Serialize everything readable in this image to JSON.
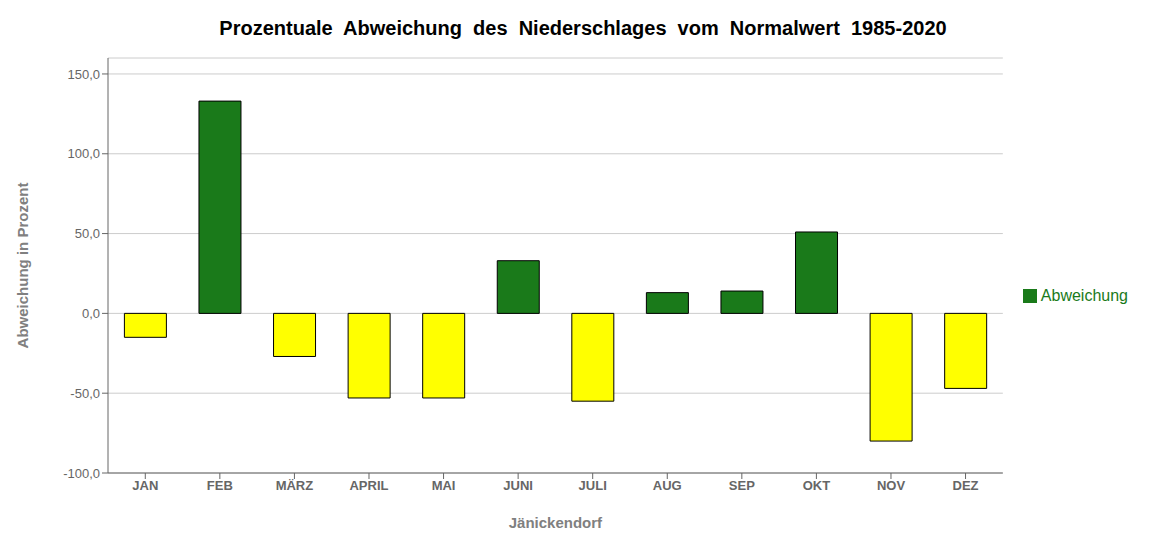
{
  "chart_data": {
    "type": "bar",
    "title": "Prozentuale  Abweichung  des  Niederschlages  vom  Normalwert  1985-2020",
    "xlabel": "Jänickendorf",
    "ylabel": "Abweichung in Prozent",
    "categories": [
      "JAN",
      "FEB",
      "MÄRZ",
      "APRIL",
      "MAI",
      "JUNI",
      "JULI",
      "AUG",
      "SEP",
      "OKT",
      "NOV",
      "DEZ"
    ],
    "series": [
      {
        "name": "Abweichung",
        "color": "#1a7a1a",
        "colors": [
          "#ffff00",
          "#1a7a1a",
          "#ffff00",
          "#ffff00",
          "#ffff00",
          "#1a7a1a",
          "#ffff00",
          "#1a7a1a",
          "#1a7a1a",
          "#1a7a1a",
          "#ffff00",
          "#ffff00"
        ],
        "values": [
          -15,
          133,
          -27,
          -53,
          -53,
          33,
          -55,
          13,
          14,
          51,
          -80,
          -47
        ]
      }
    ],
    "ylim": [
      -100,
      160
    ],
    "yticks": [
      {
        "value": -100,
        "label": "-100,0"
      },
      {
        "value": -50,
        "label": "-50,0"
      },
      {
        "value": 0,
        "label": "0,0"
      },
      {
        "value": 50,
        "label": "50,0"
      },
      {
        "value": 100,
        "label": "100,0"
      },
      {
        "value": 150,
        "label": "150,0"
      }
    ],
    "grid": true,
    "legend": "right"
  }
}
